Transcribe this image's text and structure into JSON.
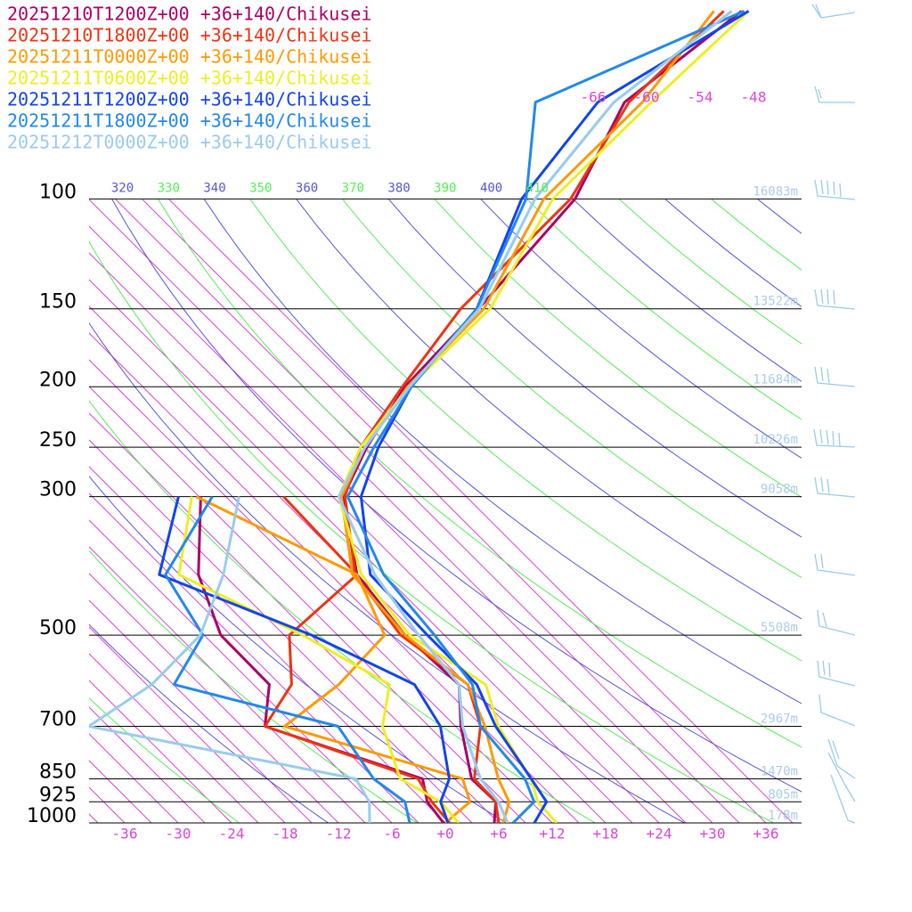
{
  "chart_data": {
    "type": "skewt",
    "xlim": [
      -40,
      40
    ],
    "ylim": [
      1000,
      48
    ],
    "log_y": true,
    "xticks": [
      -36,
      -30,
      -24,
      -18,
      -12,
      -6,
      {
        "value": 0,
        "label": "+0"
      },
      {
        "value": 6,
        "label": "+6"
      },
      {
        "value": 12,
        "label": "+12"
      },
      {
        "value": 18,
        "label": "+18"
      },
      {
        "value": 24,
        "label": "+24"
      },
      {
        "value": 30,
        "label": "+30"
      },
      {
        "value": 36,
        "label": "+36"
      }
    ],
    "yticks": [
      100,
      150,
      200,
      250,
      300,
      500,
      700,
      850,
      925,
      1000
    ],
    "height_labels": [
      {
        "value": 16083,
        "label": "16083m"
      },
      {
        "value": 13522,
        "label": "13522m"
      },
      {
        "value": 11684,
        "label": "11684m"
      },
      {
        "value": 10226,
        "label": "10226m"
      },
      {
        "value": 9058,
        "label": "9058m"
      },
      {
        "value": 5508,
        "label": "5508m"
      },
      {
        "value": 2967,
        "label": "2967m"
      },
      {
        "value": 1470,
        "label": "1470m"
      },
      {
        "value": 805,
        "label": "805m"
      },
      {
        "value": 178,
        "label": "178m"
      }
    ],
    "isentropes": [
      320,
      330,
      340,
      350,
      360,
      370,
      380,
      390,
      400,
      410
    ],
    "isotherm_labels": [
      -66,
      -60,
      -54,
      -48
    ],
    "levels": [
      1000,
      925,
      850,
      700,
      600,
      500,
      400,
      300,
      250,
      200,
      150,
      100,
      70,
      50
    ],
    "series": [
      {
        "name": "20251210T1200Z+00 +36+140/Chikusei",
        "color": "#aa0066",
        "temperature": [
          5.5,
          3.3,
          -2,
          -9.1,
          -14,
          -25.6,
          -37.8,
          -48.1,
          -51,
          -53.5,
          -54,
          -55.5,
          -60.8,
          -57.9
        ],
        "dewpoint": [
          -0.2,
          -4.4,
          -7.5,
          -31.1,
          -35.3,
          -46.3,
          -55.6,
          -64.1,
          null,
          null,
          null,
          null,
          null,
          null
        ]
      },
      {
        "name": "20251210T1800Z+00 +36+140/Chikusei",
        "color": "#ee3311",
        "temperature": [
          6,
          3.3,
          -1.7,
          -6.9,
          -13,
          -26.1,
          -38,
          -47.9,
          -51.7,
          -53.8,
          -56,
          -56,
          -60.3,
          -59.9
        ],
        "dewpoint": [
          0.5,
          -3.9,
          -8,
          -31.1,
          -32.8,
          -38.6,
          -37.8,
          -54.8,
          null,
          null,
          null,
          null,
          null,
          null
        ]
      },
      {
        "name": "20251211T0000Z+00 +36+140/Chikusei",
        "color": "#ff9900",
        "temperature": [
          6.5,
          4.8,
          1,
          -6.4,
          -13,
          -25.6,
          -38.3,
          -48.3,
          -51.2,
          -53.2,
          -53.4,
          -59,
          -58.8,
          -61
        ],
        "dewpoint": [
          0,
          0.4,
          -3,
          -28.9,
          -27.5,
          -27.9,
          -37.8,
          -64.6,
          null,
          null,
          null,
          null,
          null,
          null
        ]
      },
      {
        "name": "20251211T0600Z+00 +36+140/Chikusei",
        "color": "#eeee22",
        "temperature": [
          12.5,
          8,
          4.7,
          -4.9,
          -11,
          -25.1,
          -37.3,
          -48.6,
          -51.7,
          -53,
          -52.7,
          -58,
          -57.8,
          -57.1
        ],
        "dewpoint": [
          1.5,
          -2.9,
          -10,
          -17.9,
          -21.8,
          -37.1,
          -57.8,
          -65.1,
          null,
          null,
          null,
          null,
          null,
          null
        ]
      },
      {
        "name": "20251211T1200Z+00 +36+140/Chikusei",
        "color": "#1144ee",
        "temperature": [
          10,
          9,
          4.7,
          -5.2,
          -12,
          -23.1,
          -36.3,
          -46.1,
          -49.7,
          -52.8,
          -54.2,
          -61.5,
          -63.8,
          -57.1
        ],
        "dewpoint": [
          0.3,
          -2.9,
          -4.5,
          -11.4,
          -19,
          -36.1,
          -60,
          -66.6,
          null,
          null,
          null,
          null,
          null,
          null
        ]
      },
      {
        "name": "20251211T1800Z+00 +36+140/Chikusei",
        "color": "#2288ee",
        "temperature": [
          7.6,
          7.6,
          4,
          -6.9,
          -12.5,
          -22.3,
          -34.8,
          -47.6,
          -50.2,
          -52.8,
          -54.2,
          -61,
          -70.8,
          -57.6
        ],
        "dewpoint": [
          -4,
          -6.9,
          -13,
          -22.9,
          -46,
          -48.3,
          -59.3,
          -62.8,
          null,
          null,
          null,
          null,
          null,
          null
        ]
      },
      {
        "name": "20251212T0000Z+00 +36+140/Chikusei",
        "color": "#99ccee",
        "temperature": [
          7,
          3.6,
          -1,
          -8.9,
          -14,
          -24.1,
          -35.8,
          -48.6,
          -51.2,
          -53,
          -53.9,
          -60,
          -62,
          -59
        ]
      },
      {
        "name": "20251212T0000Z+00 +36+140/Chikusei",
        "color": "#99ccee",
        "temperature": [
          7,
          3.6,
          -1,
          -8.9,
          -14,
          -24.1,
          -35.8,
          -48.6,
          -51.2,
          -53,
          -53.9,
          -60,
          -62,
          -59
        ],
        "dewpoint": [
          -8.5,
          -10.9,
          -15,
          -50.9,
          -48.5,
          -48.6,
          -52.8,
          -59.8,
          null,
          null,
          null,
          null,
          null,
          null
        ]
      }
    ]
  }
}
